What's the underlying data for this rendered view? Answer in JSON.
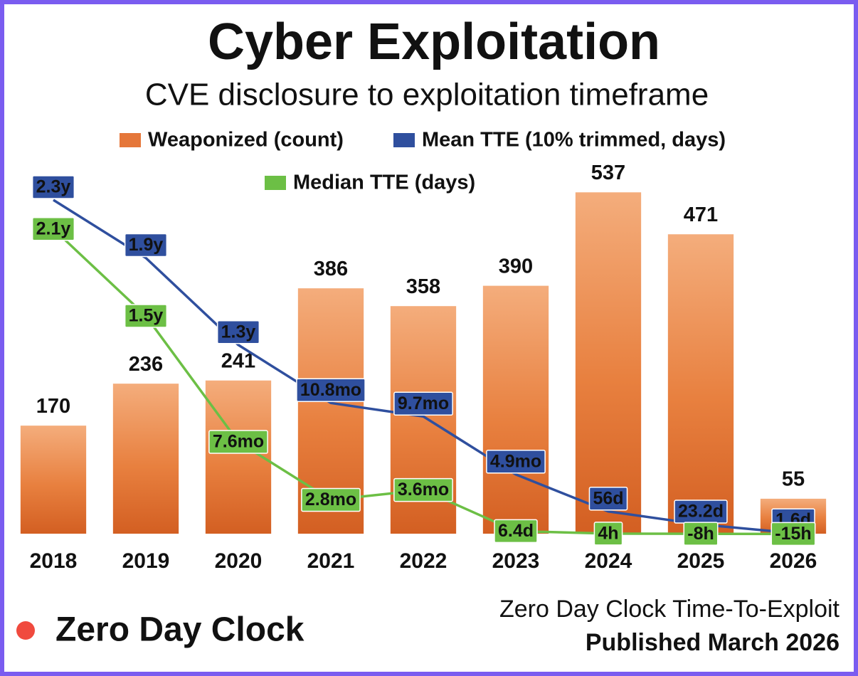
{
  "chart_data": {
    "type": "bar",
    "title": "Cyber Exploitation",
    "subtitle": "CVE disclosure to exploitation timeframe",
    "legend": "top",
    "categories": [
      "2018",
      "2019",
      "2020",
      "2021",
      "2022",
      "2023",
      "2024",
      "2025",
      "2026"
    ],
    "ylim": [
      0,
      600
    ],
    "y2lim": [
      0,
      960
    ],
    "series": [
      {
        "name": "Weaponized (count)",
        "color": "#e5773a",
        "type": "bar",
        "values": [
          170,
          236,
          241,
          386,
          358,
          390,
          537,
          471,
          55
        ]
      },
      {
        "name": "Mean TTE (10% trimmed, days)",
        "color": "#2f4f9e",
        "type": "line",
        "axis": "y2",
        "values": [
          840,
          694,
          475,
          329,
          295,
          149,
          56,
          23.2,
          1.6
        ],
        "value_labels": [
          "2.3y",
          "1.9y",
          "1.3y",
          "10.8mo",
          "9.7mo",
          "4.9mo",
          "56d",
          "23.2d",
          "1.6d"
        ]
      },
      {
        "name": "Median TTE (days)",
        "color": "#6cbf45",
        "type": "line",
        "axis": "y2",
        "values": [
          767,
          548,
          231,
          85,
          110,
          6.4,
          0.167,
          -0.333,
          -0.625
        ],
        "value_labels": [
          "2.1y",
          "1.5y",
          "7.6mo",
          "2.8mo",
          "3.6mo",
          "6.4d",
          "4h",
          "-8h",
          "-15h"
        ]
      }
    ]
  },
  "footer": {
    "brand": "Zero Day Clock",
    "source": "Zero Day Clock Time-To-Exploit",
    "published": "Published March 2026"
  }
}
